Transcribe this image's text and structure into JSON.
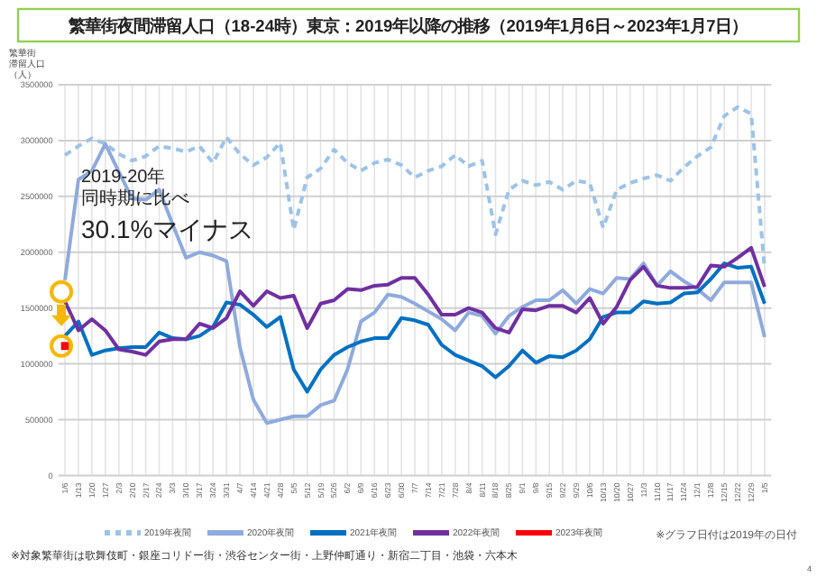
{
  "chart_data": {
    "type": "line",
    "title": "繁華街夜間滞留人口（18-24時）東京：2019年以降の推移（2019年1月6日～2023年1月7日）",
    "ylabel": "繁華街滞留人口（人）",
    "categories": [
      "1/6",
      "1/13",
      "1/20",
      "1/27",
      "2/3",
      "2/10",
      "2/17",
      "2/24",
      "3/3",
      "3/10",
      "3/17",
      "3/24",
      "3/31",
      "4/7",
      "4/14",
      "4/21",
      "4/28",
      "5/5",
      "5/12",
      "5/19",
      "5/26",
      "6/2",
      "6/9",
      "6/16",
      "6/23",
      "6/30",
      "7/7",
      "7/14",
      "7/21",
      "7/28",
      "8/4",
      "8/11",
      "8/18",
      "8/25",
      "9/1",
      "9/8",
      "9/15",
      "9/22",
      "9/29",
      "10/6",
      "10/13",
      "10/20",
      "10/27",
      "11/3",
      "11/10",
      "11/17",
      "11/24",
      "12/1",
      "12/8",
      "12/15",
      "12/22",
      "12/29",
      "1/5"
    ],
    "ylim": [
      0,
      3500000
    ],
    "yticks": [
      0,
      500000,
      1000000,
      1500000,
      2000000,
      2500000,
      3000000,
      3500000
    ],
    "grid": true,
    "legend": "bottom",
    "series": [
      {
        "name": "2019年夜間",
        "color": "#9dc3e6",
        "line_style": "dashed",
        "values": [
          2870000,
          2950000,
          3020000,
          2970000,
          2880000,
          2820000,
          2860000,
          2950000,
          2930000,
          2900000,
          2950000,
          2800000,
          3030000,
          2880000,
          2780000,
          2850000,
          2980000,
          2200000,
          2670000,
          2750000,
          2920000,
          2800000,
          2730000,
          2800000,
          2830000,
          2780000,
          2670000,
          2730000,
          2770000,
          2870000,
          2770000,
          2820000,
          2160000,
          2560000,
          2640000,
          2600000,
          2630000,
          2560000,
          2640000,
          2620000,
          2220000,
          2560000,
          2620000,
          2660000,
          2690000,
          2640000,
          2760000,
          2860000,
          2940000,
          3220000,
          3300000,
          3240000,
          1850000
        ]
      },
      {
        "name": "2020年夜間",
        "color": "#8faadc",
        "values": [
          1750000,
          2650000,
          2730000,
          2970000,
          2720000,
          2480000,
          2470000,
          2560000,
          2250000,
          1950000,
          2000000,
          1970000,
          1920000,
          1150000,
          680000,
          470000,
          500000,
          530000,
          530000,
          630000,
          670000,
          950000,
          1380000,
          1460000,
          1620000,
          1600000,
          1540000,
          1470000,
          1400000,
          1300000,
          1460000,
          1430000,
          1270000,
          1430000,
          1510000,
          1570000,
          1570000,
          1660000,
          1540000,
          1670000,
          1630000,
          1770000,
          1760000,
          1900000,
          1700000,
          1830000,
          1740000,
          1670000,
          1570000,
          1730000,
          1730000,
          1730000,
          1240000
        ]
      },
      {
        "name": "2021年夜間",
        "color": "#0070c0",
        "values": [
          1250000,
          1380000,
          1080000,
          1120000,
          1140000,
          1150000,
          1150000,
          1280000,
          1230000,
          1220000,
          1250000,
          1330000,
          1550000,
          1530000,
          1440000,
          1330000,
          1420000,
          950000,
          750000,
          950000,
          1080000,
          1150000,
          1200000,
          1230000,
          1230000,
          1410000,
          1390000,
          1350000,
          1170000,
          1080000,
          1030000,
          980000,
          880000,
          980000,
          1120000,
          1010000,
          1070000,
          1060000,
          1120000,
          1220000,
          1420000,
          1460000,
          1460000,
          1560000,
          1540000,
          1550000,
          1630000,
          1640000,
          1760000,
          1900000,
          1860000,
          1870000,
          1540000
        ]
      },
      {
        "name": "2022年夜間",
        "color": "#7030a0",
        "values": [
          1560000,
          1300000,
          1400000,
          1300000,
          1130000,
          1110000,
          1080000,
          1200000,
          1220000,
          1220000,
          1360000,
          1320000,
          1410000,
          1650000,
          1520000,
          1650000,
          1590000,
          1610000,
          1320000,
          1540000,
          1570000,
          1670000,
          1660000,
          1700000,
          1710000,
          1770000,
          1770000,
          1620000,
          1440000,
          1440000,
          1500000,
          1460000,
          1320000,
          1280000,
          1490000,
          1480000,
          1520000,
          1520000,
          1460000,
          1590000,
          1360000,
          1510000,
          1750000,
          1870000,
          1700000,
          1680000,
          1680000,
          1690000,
          1880000,
          1870000,
          1950000,
          2040000,
          1690000
        ]
      },
      {
        "name": "2023年夜間",
        "color": "#ff0000",
        "marker": "square",
        "values": [
          1160000,
          null,
          null,
          null,
          null,
          null,
          null,
          null,
          null,
          null,
          null,
          null,
          null,
          null,
          null,
          null,
          null,
          null,
          null,
          null,
          null,
          null,
          null,
          null,
          null,
          null,
          null,
          null,
          null,
          null,
          null,
          null,
          null,
          null,
          null,
          null,
          null,
          null,
          null,
          null,
          null,
          null,
          null,
          null,
          null,
          null,
          null,
          null,
          null,
          null,
          null,
          null,
          null
        ]
      }
    ],
    "annotations": [
      "2019-20年",
      "同時期に比べ",
      "30.1%マイナス",
      "※対象繁華街は歌舞伎町・銀座コリドー街・渋谷センター街・上野仲町通り・新宿二丁目・池袋・六本木",
      "※グラフ日付は2019年の日付",
      "4"
    ]
  }
}
